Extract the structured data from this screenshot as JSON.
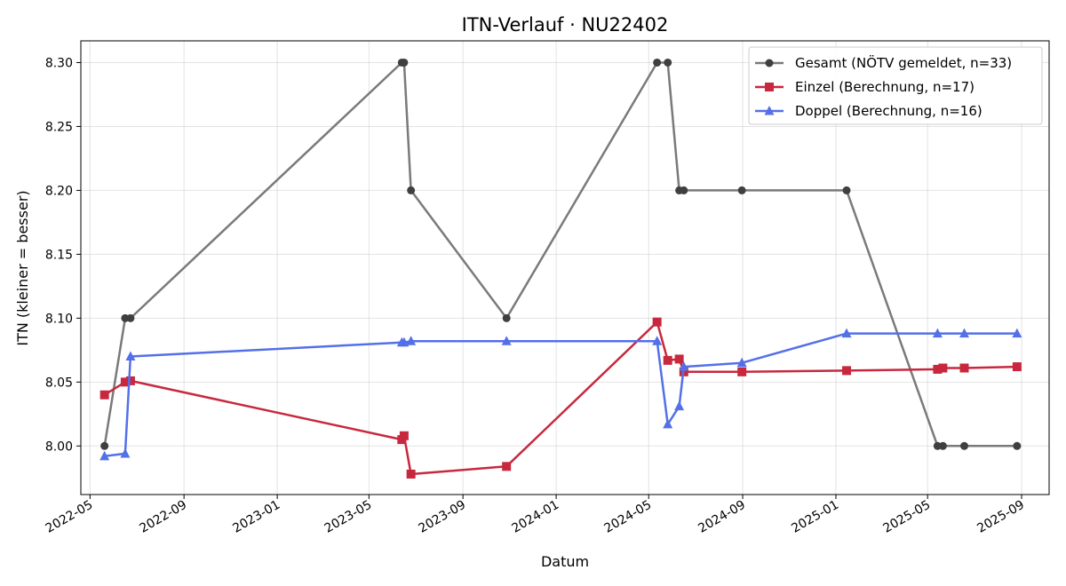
{
  "chart_data": {
    "type": "line",
    "title": "ITN-Verlauf · NU22402",
    "xlabel": "Datum",
    "ylabel": "ITN  (kleiner = besser)",
    "xlim": [
      "2022-04-19",
      "2025-10-07"
    ],
    "ylim": [
      7.962,
      8.317
    ],
    "x_ticks": [
      "2022-05",
      "2022-09",
      "2023-01",
      "2023-05",
      "2023-09",
      "2024-01",
      "2024-05",
      "2024-09",
      "2025-01",
      "2025-05",
      "2025-09"
    ],
    "y_ticks": [
      "8.00",
      "8.05",
      "8.10",
      "8.15",
      "8.20",
      "8.25",
      "8.30"
    ],
    "grid": true,
    "legend_position": "top-right",
    "series": [
      {
        "name": "Gesamt (NÖTV gemeldet, n=33)",
        "color": "#7a7a7a",
        "marker": "circle",
        "points": [
          [
            "2022-05-20",
            8.0
          ],
          [
            "2022-06-16",
            8.1
          ],
          [
            "2022-06-23",
            8.1
          ],
          [
            "2023-06-13",
            8.3
          ],
          [
            "2023-06-16",
            8.3
          ],
          [
            "2023-06-25",
            8.2
          ],
          [
            "2023-10-28",
            8.1
          ],
          [
            "2024-05-12",
            8.3
          ],
          [
            "2024-05-26",
            8.3
          ],
          [
            "2024-06-10",
            8.2
          ],
          [
            "2024-06-16",
            8.2
          ],
          [
            "2024-08-31",
            8.2
          ],
          [
            "2025-01-15",
            8.2
          ],
          [
            "2025-05-14",
            8.0
          ],
          [
            "2025-05-21",
            8.0
          ],
          [
            "2025-06-18",
            8.0
          ],
          [
            "2025-08-26",
            8.0
          ]
        ]
      },
      {
        "name": "Einzel (Berechnung, n=17)",
        "color": "#c8283e",
        "marker": "square",
        "points": [
          [
            "2022-05-20",
            8.04
          ],
          [
            "2022-06-16",
            8.05
          ],
          [
            "2022-06-23",
            8.051
          ],
          [
            "2023-06-13",
            8.005
          ],
          [
            "2023-06-16",
            8.008
          ],
          [
            "2023-06-25",
            7.978
          ],
          [
            "2023-10-28",
            7.984
          ],
          [
            "2024-05-12",
            8.097
          ],
          [
            "2024-05-26",
            8.067
          ],
          [
            "2024-06-10",
            8.068
          ],
          [
            "2024-06-16",
            8.058
          ],
          [
            "2024-08-31",
            8.058
          ],
          [
            "2025-01-15",
            8.059
          ],
          [
            "2025-05-14",
            8.06
          ],
          [
            "2025-05-21",
            8.061
          ],
          [
            "2025-06-18",
            8.061
          ],
          [
            "2025-08-26",
            8.062
          ]
        ]
      },
      {
        "name": "Doppel (Berechnung, n=16)",
        "color": "#5470e8",
        "marker": "triangle",
        "points": [
          [
            "2022-05-20",
            7.992
          ],
          [
            "2022-06-16",
            7.994
          ],
          [
            "2022-06-23",
            8.07
          ],
          [
            "2023-06-13",
            8.081
          ],
          [
            "2023-06-16",
            8.081
          ],
          [
            "2023-06-25",
            8.082
          ],
          [
            "2023-10-28",
            8.082
          ],
          [
            "2024-05-12",
            8.082
          ],
          [
            "2024-05-26",
            8.017
          ],
          [
            "2024-06-10",
            8.031
          ],
          [
            "2024-06-16",
            8.062
          ],
          [
            "2024-08-31",
            8.065
          ],
          [
            "2025-01-15",
            8.088
          ],
          [
            "2025-05-14",
            8.088
          ],
          [
            "2025-06-18",
            8.088
          ],
          [
            "2025-08-26",
            8.088
          ]
        ]
      }
    ]
  }
}
